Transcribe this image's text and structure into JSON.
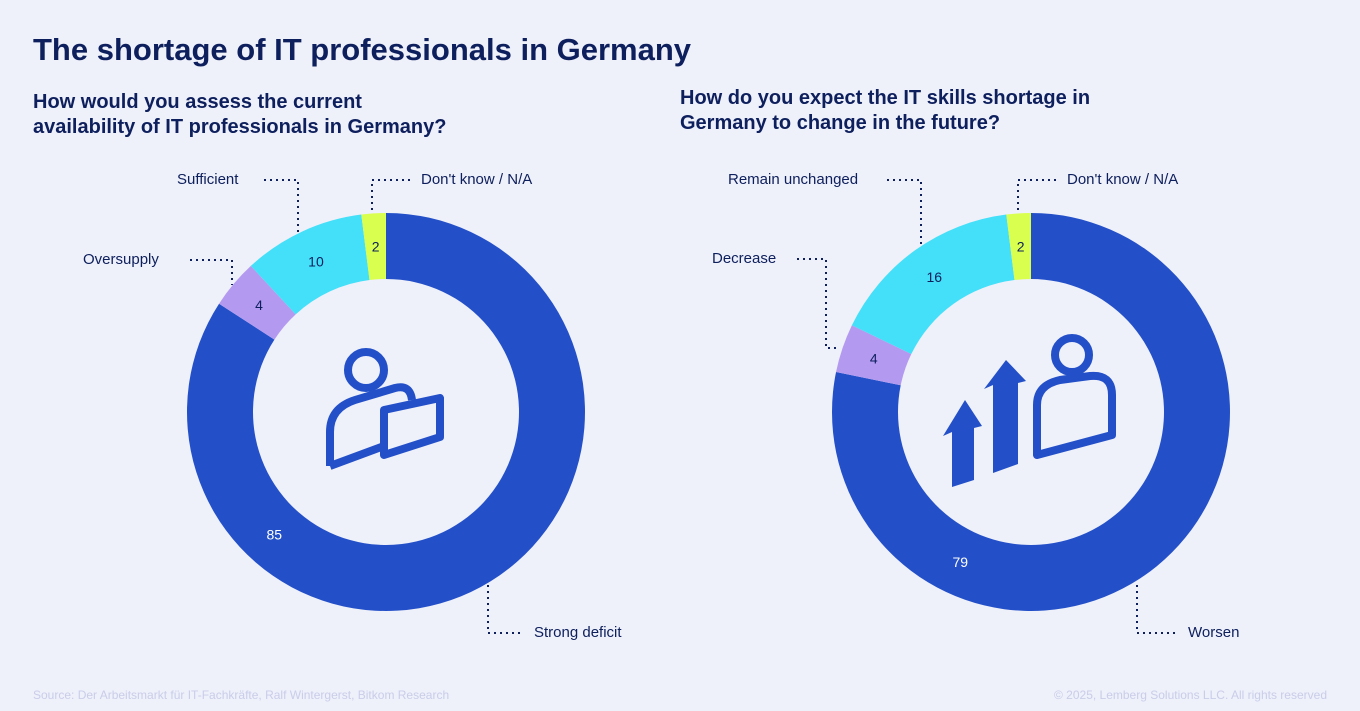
{
  "title": "The shortage of IT professionals in Germany",
  "colors": {
    "Strong deficit": "#2350c8",
    "Worsen": "#2350c8",
    "Oversupply": "#b39af0",
    "Decrease": "#b39af0",
    "Sufficient": "#44dff8",
    "Remain unchanged": "#44dff8",
    "Don't know / N/A": "#d9ff4f"
  },
  "chart_data": [
    {
      "type": "pie",
      "donut": true,
      "title": "How would you assess the current availability of IT professionals in Germany?",
      "categories": [
        "Strong deficit",
        "Oversupply",
        "Sufficient",
        "Don't know / N/A"
      ],
      "values": [
        85,
        4,
        10,
        2
      ],
      "icon": "person-at-desk-icon"
    },
    {
      "type": "pie",
      "donut": true,
      "title": "How do you expect the IT skills shortage in Germany to change in the future?",
      "categories": [
        "Worsen",
        "Decrease",
        "Remain unchanged",
        "Don't know / N/A"
      ],
      "values": [
        79,
        4,
        16,
        2
      ],
      "icon": "person-growth-arrows-icon"
    }
  ],
  "footer": {
    "source": "Source: Der Arbeitsmarkt für IT-Fachkräfte, Ralf Wintergerst, Bitkom Research",
    "copyright": "© 2025, Lemberg Solutions LLC. All rights reserved"
  }
}
